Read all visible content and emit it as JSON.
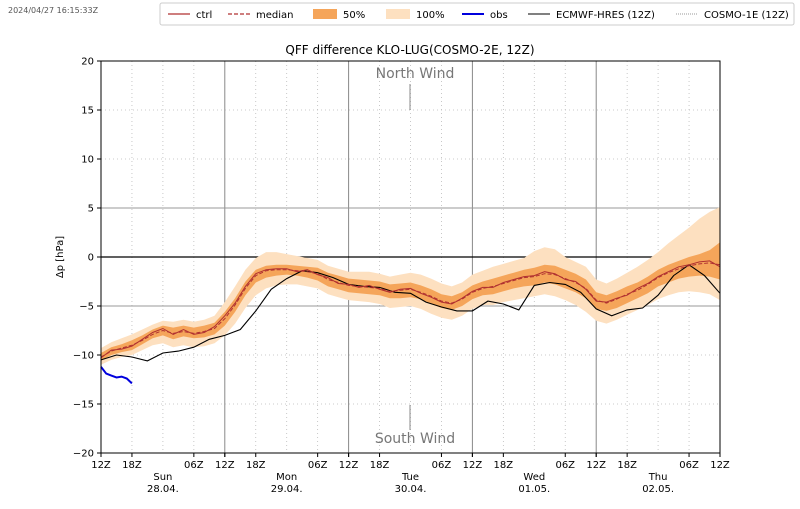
{
  "timestamp": "2024/04/27 16:15:33Z",
  "chart_data": {
    "type": "line",
    "title": "QFF difference KLO-LUG(COSMO-2E, 12Z)",
    "ylabel": "Δp [hPa]",
    "xlabel": "",
    "ylim": [
      -20,
      20
    ],
    "xlim_hours": [
      0,
      120
    ],
    "yticks": [
      -20,
      -15,
      -10,
      -5,
      0,
      5,
      10,
      15,
      20
    ],
    "xticks": [
      {
        "h": 0,
        "label": "12Z"
      },
      {
        "h": 6,
        "label": "18Z"
      },
      {
        "h": 18,
        "label": "06Z"
      },
      {
        "h": 24,
        "label": "12Z"
      },
      {
        "h": 30,
        "label": "18Z"
      },
      {
        "h": 42,
        "label": "06Z"
      },
      {
        "h": 48,
        "label": "12Z"
      },
      {
        "h": 54,
        "label": "18Z"
      },
      {
        "h": 66,
        "label": "06Z"
      },
      {
        "h": 72,
        "label": "12Z"
      },
      {
        "h": 78,
        "label": "18Z"
      },
      {
        "h": 90,
        "label": "06Z"
      },
      {
        "h": 96,
        "label": "12Z"
      },
      {
        "h": 102,
        "label": "18Z"
      },
      {
        "h": 114,
        "label": "06Z"
      },
      {
        "h": 120,
        "label": "12Z"
      }
    ],
    "day_labels": [
      {
        "h": 12,
        "day": "Sun",
        "date": "28.04."
      },
      {
        "h": 36,
        "day": "Mon",
        "date": "29.04."
      },
      {
        "h": 60,
        "day": "Tue",
        "date": "30.04."
      },
      {
        "h": 84,
        "day": "Wed",
        "date": "01.05."
      },
      {
        "h": 108,
        "day": "Thu",
        "date": "02.05."
      }
    ],
    "annotations": {
      "top": "North Wind",
      "bottom": "South Wind"
    },
    "legend": {
      "placement": "top",
      "entries": [
        "ctrl",
        "median",
        "50%",
        "100%",
        "obs",
        "ECMWF-HRES (12Z)",
        "COSMO-1E (12Z)"
      ]
    },
    "colors": {
      "ctrl": "#b03030",
      "median": "#b03030",
      "p50": "#f5a55a",
      "p100": "#fde0c0",
      "obs": "#0000dd",
      "ecmwf": "#000000",
      "cosmo1e": "#999999"
    },
    "series": [
      {
        "name": "median",
        "x": [
          0,
          2,
          4,
          6,
          8,
          10,
          12,
          14,
          16,
          18,
          20,
          22,
          24,
          26,
          28,
          30,
          32,
          34,
          36,
          38,
          40,
          42,
          44,
          46,
          48,
          50,
          52,
          54,
          56,
          58,
          60,
          62,
          64,
          66,
          68,
          70,
          72,
          74,
          76,
          78,
          80,
          82,
          84,
          86,
          88,
          90,
          92,
          94,
          96,
          98,
          100,
          102,
          104,
          106,
          108,
          110,
          112,
          114,
          116,
          118,
          120
        ],
        "y": [
          -10.2,
          -9.6,
          -9.3,
          -9.0,
          -8.5,
          -7.9,
          -7.5,
          -7.8,
          -7.6,
          -7.8,
          -7.6,
          -7.3,
          -6.3,
          -4.9,
          -3.2,
          -1.9,
          -1.4,
          -1.3,
          -1.3,
          -1.4,
          -1.5,
          -1.7,
          -2.3,
          -2.6,
          -2.9,
          -3.0,
          -3.1,
          -3.2,
          -3.5,
          -3.4,
          -3.3,
          -3.6,
          -4.0,
          -4.5,
          -4.7,
          -4.3,
          -3.6,
          -3.2,
          -3.0,
          -2.7,
          -2.4,
          -2.1,
          -2.0,
          -1.7,
          -1.8,
          -2.2,
          -2.6,
          -3.2,
          -4.4,
          -4.7,
          -4.3,
          -3.8,
          -3.4,
          -2.8,
          -2.1,
          -1.6,
          -1.2,
          -0.9,
          -0.7,
          -0.6,
          -0.8
        ]
      },
      {
        "name": "ctrl",
        "x": [
          0,
          2,
          4,
          6,
          8,
          10,
          12,
          14,
          16,
          18,
          20,
          22,
          24,
          26,
          28,
          30,
          32,
          34,
          36,
          38,
          40,
          42,
          44,
          46,
          48,
          50,
          52,
          54,
          56,
          58,
          60,
          62,
          64,
          66,
          68,
          70,
          72,
          74,
          76,
          78,
          80,
          82,
          84,
          86,
          88,
          90,
          92,
          94,
          96,
          98,
          100,
          102,
          104,
          106,
          108,
          110,
          112,
          114,
          116,
          118,
          120
        ],
        "y": [
          -10.3,
          -9.5,
          -9.4,
          -9.1,
          -8.4,
          -7.7,
          -7.3,
          -7.9,
          -7.4,
          -7.9,
          -7.7,
          -7.1,
          -6.0,
          -4.7,
          -3.0,
          -1.7,
          -1.3,
          -1.2,
          -1.2,
          -1.5,
          -1.3,
          -1.8,
          -2.1,
          -2.7,
          -2.8,
          -3.1,
          -2.9,
          -3.3,
          -3.6,
          -3.3,
          -3.2,
          -3.7,
          -4.1,
          -4.6,
          -4.8,
          -4.2,
          -3.5,
          -3.1,
          -3.1,
          -2.6,
          -2.3,
          -2.0,
          -1.9,
          -1.5,
          -1.7,
          -2.3,
          -2.5,
          -3.3,
          -4.5,
          -4.6,
          -4.2,
          -3.9,
          -3.2,
          -2.7,
          -2.0,
          -1.5,
          -1.0,
          -0.8,
          -0.5,
          -0.4,
          -1.0
        ]
      },
      {
        "name": "50%",
        "x": [
          0,
          2,
          4,
          6,
          8,
          10,
          12,
          14,
          16,
          18,
          20,
          22,
          24,
          26,
          28,
          30,
          32,
          34,
          36,
          38,
          40,
          42,
          44,
          46,
          48,
          50,
          52,
          54,
          56,
          58,
          60,
          62,
          64,
          66,
          68,
          70,
          72,
          74,
          76,
          78,
          80,
          82,
          84,
          86,
          88,
          90,
          92,
          94,
          96,
          98,
          100,
          102,
          104,
          106,
          108,
          110,
          112,
          114,
          116,
          118,
          120
        ],
        "low": [
          -10.6,
          -10.0,
          -9.7,
          -9.5,
          -8.9,
          -8.3,
          -8.0,
          -8.4,
          -8.1,
          -8.3,
          -8.2,
          -7.9,
          -7.0,
          -5.6,
          -3.9,
          -2.6,
          -2.1,
          -1.9,
          -1.8,
          -1.9,
          -2.1,
          -2.4,
          -3.0,
          -3.3,
          -3.6,
          -3.7,
          -3.8,
          -3.9,
          -4.2,
          -4.2,
          -4.1,
          -4.3,
          -4.8,
          -5.2,
          -5.4,
          -5.0,
          -4.3,
          -3.9,
          -3.8,
          -3.5,
          -3.2,
          -3.0,
          -2.9,
          -2.6,
          -2.8,
          -3.2,
          -3.6,
          -4.2,
          -5.3,
          -5.5,
          -5.2,
          -4.7,
          -4.2,
          -3.7,
          -3.0,
          -2.6,
          -2.2,
          -2.0,
          -1.9,
          -2.0,
          -2.3
        ],
        "high": [
          -9.8,
          -9.2,
          -8.9,
          -8.5,
          -8.0,
          -7.4,
          -7.0,
          -7.2,
          -7.0,
          -7.2,
          -7.0,
          -6.7,
          -5.6,
          -4.2,
          -2.5,
          -1.3,
          -0.9,
          -0.8,
          -0.8,
          -0.9,
          -1.0,
          -1.1,
          -1.6,
          -1.9,
          -2.2,
          -2.3,
          -2.4,
          -2.5,
          -2.8,
          -2.7,
          -2.6,
          -2.9,
          -3.3,
          -3.8,
          -4.0,
          -3.6,
          -2.9,
          -2.5,
          -2.2,
          -1.9,
          -1.6,
          -1.3,
          -1.1,
          -0.8,
          -0.9,
          -1.3,
          -1.7,
          -2.3,
          -3.6,
          -3.9,
          -3.5,
          -3.0,
          -2.6,
          -2.0,
          -1.3,
          -0.8,
          -0.4,
          0.0,
          0.3,
          0.7,
          1.5
        ]
      },
      {
        "name": "100%",
        "x": [
          0,
          2,
          4,
          6,
          8,
          10,
          12,
          14,
          16,
          18,
          20,
          22,
          24,
          26,
          28,
          30,
          32,
          34,
          36,
          38,
          40,
          42,
          44,
          46,
          48,
          50,
          52,
          54,
          56,
          58,
          60,
          62,
          64,
          66,
          68,
          70,
          72,
          74,
          76,
          78,
          80,
          82,
          84,
          86,
          88,
          90,
          92,
          94,
          96,
          98,
          100,
          102,
          104,
          106,
          108,
          110,
          112,
          114,
          116,
          118,
          120
        ],
        "low": [
          -11.0,
          -10.5,
          -10.2,
          -10.0,
          -9.5,
          -9.0,
          -8.8,
          -9.2,
          -9.0,
          -9.2,
          -9.1,
          -8.8,
          -8.0,
          -6.8,
          -5.2,
          -3.9,
          -3.2,
          -2.9,
          -2.8,
          -2.8,
          -3.0,
          -3.2,
          -3.8,
          -4.1,
          -4.4,
          -4.5,
          -4.6,
          -4.8,
          -5.2,
          -5.1,
          -5.0,
          -5.3,
          -5.8,
          -6.2,
          -6.4,
          -6.0,
          -5.3,
          -4.9,
          -4.9,
          -4.6,
          -4.4,
          -4.2,
          -4.0,
          -3.8,
          -4.0,
          -4.4,
          -4.9,
          -5.6,
          -6.5,
          -6.8,
          -6.4,
          -5.9,
          -5.4,
          -4.9,
          -4.3,
          -3.9,
          -3.6,
          -3.5,
          -3.6,
          -3.8,
          -4.4
        ],
        "high": [
          -9.3,
          -8.7,
          -8.3,
          -7.9,
          -7.4,
          -6.9,
          -6.5,
          -6.6,
          -6.4,
          -6.6,
          -6.4,
          -6.0,
          -4.6,
          -3.0,
          -1.3,
          -0.1,
          0.5,
          0.5,
          0.3,
          0.1,
          -0.1,
          -0.3,
          -0.9,
          -1.2,
          -1.5,
          -1.5,
          -1.5,
          -1.7,
          -2.0,
          -1.8,
          -1.6,
          -1.8,
          -2.2,
          -2.7,
          -3.0,
          -2.6,
          -1.8,
          -1.4,
          -1.0,
          -0.7,
          -0.4,
          -0.1,
          0.6,
          1.0,
          0.8,
          0.0,
          -0.5,
          -1.0,
          -2.3,
          -2.7,
          -2.2,
          -1.6,
          -1.0,
          -0.3,
          0.5,
          1.4,
          2.2,
          3.0,
          3.9,
          4.6,
          5.1
        ]
      },
      {
        "name": "obs",
        "x": [
          0,
          1,
          2,
          3,
          4,
          5,
          6
        ],
        "y": [
          -11.2,
          -11.9,
          -12.1,
          -12.3,
          -12.2,
          -12.4,
          -12.9
        ]
      },
      {
        "name": "ECMWF-HRES (12Z)",
        "x": [
          0,
          3,
          6,
          9,
          12,
          15,
          18,
          21,
          24,
          27,
          30,
          33,
          36,
          39,
          42,
          45,
          48,
          51,
          54,
          57,
          60,
          63,
          66,
          69,
          72,
          75,
          78,
          81,
          84,
          87,
          90,
          93,
          96,
          99,
          102,
          105,
          108,
          111,
          114,
          117,
          120
        ],
        "y": [
          -10.5,
          -10.0,
          -10.2,
          -10.6,
          -9.8,
          -9.6,
          -9.2,
          -8.4,
          -8.0,
          -7.4,
          -5.5,
          -3.3,
          -2.2,
          -1.4,
          -1.6,
          -2.1,
          -2.8,
          -3.0,
          -3.1,
          -3.6,
          -3.7,
          -4.6,
          -5.1,
          -5.5,
          -5.5,
          -4.5,
          -4.8,
          -5.4,
          -2.9,
          -2.6,
          -2.8,
          -3.6,
          -5.3,
          -6.0,
          -5.4,
          -5.2,
          -3.9,
          -1.9,
          -0.8,
          -1.9,
          -3.7
        ]
      }
    ]
  }
}
